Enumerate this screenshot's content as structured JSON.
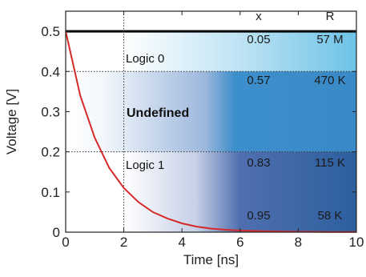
{
  "chart_data": {
    "type": "line",
    "xlabel": "Time [ns]",
    "ylabel": "Voltage [V]",
    "xlim": [
      0,
      10
    ],
    "ylim": [
      0,
      0.55
    ],
    "x_ticks": [
      "0",
      "2",
      "4",
      "6",
      "8",
      "10"
    ],
    "y_ticks": [
      "0",
      "0.1",
      "0.2",
      "0.3",
      "0.4",
      "0.5"
    ],
    "series": [
      {
        "color": "#d62a2a",
        "x": [
          0,
          0.5,
          1,
          1.5,
          2,
          2.5,
          3,
          3.5,
          4,
          4.5,
          5,
          5.5,
          6,
          6.5,
          7,
          8,
          9,
          10
        ],
        "y": [
          0.5,
          0.34,
          0.235,
          0.16,
          0.11,
          0.075,
          0.05,
          0.034,
          0.022,
          0.014,
          0.009,
          0.006,
          0.004,
          0.003,
          0.002,
          0.001,
          0.0005,
          0.0003
        ]
      }
    ],
    "reference_lines": [
      {
        "axis": "y",
        "value": 0.5,
        "style": "solid",
        "color": "#000000"
      },
      {
        "axis": "y",
        "value": 0.4,
        "style": "dotted",
        "color": "#333333"
      },
      {
        "axis": "y",
        "value": 0.2,
        "style": "dotted",
        "color": "#333333"
      },
      {
        "axis": "x",
        "value": 2,
        "style": "dotted",
        "color": "#333333"
      }
    ],
    "regions": [
      {
        "label": "Logic 0",
        "bold": false
      },
      {
        "label": "Undefined",
        "bold": true
      },
      {
        "label": "Logic 1",
        "bold": false
      }
    ],
    "table": {
      "headers": [
        "x",
        "R"
      ],
      "rows": [
        [
          "0.05",
          "57 M"
        ],
        [
          "0.57",
          "470 K"
        ],
        [
          "0.83",
          "115 K"
        ],
        [
          "0.95",
          "58 K"
        ]
      ]
    },
    "colors": {
      "light_blue": "#6cc3e6",
      "mid_blue": "#3d8fcc",
      "dark_blue": "#2d5f9e",
      "curve": "#d62a2a"
    },
    "grid": false
  }
}
